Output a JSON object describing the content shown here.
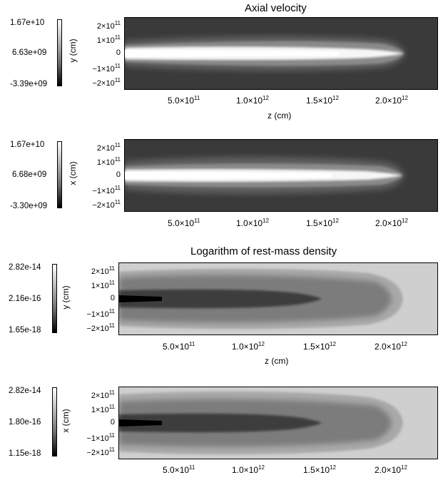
{
  "titles": {
    "velocity": "Axial velocity",
    "density": "Logarithm of rest-mass density"
  },
  "panels": [
    {
      "cbar_top": "1.67e+10",
      "cbar_mid": "6.63e+09",
      "cbar_bot": "-3.39e+09",
      "ylabel": "y (cm)",
      "xlabel": "z (cm)"
    },
    {
      "cbar_top": "1.67e+10",
      "cbar_mid": "6.68e+09",
      "cbar_bot": "-3.30e+09",
      "ylabel": "x (cm)",
      "xlabel": ""
    },
    {
      "cbar_top": "2.82e-14",
      "cbar_mid": "2.16e-16",
      "cbar_bot": "1.65e-18",
      "ylabel": "y (cm)",
      "xlabel": "z (cm)"
    },
    {
      "cbar_top": "2.82e-14",
      "cbar_mid": "1.80e-16",
      "cbar_bot": "1.15e-18",
      "ylabel": "x (cm)",
      "xlabel": ""
    }
  ],
  "yticks": [
    {
      "mant": "2×10",
      "exp": "11"
    },
    {
      "mant": "1×10",
      "exp": "11"
    },
    {
      "mant": "0",
      "exp": ""
    },
    {
      "mant": "−1×10",
      "exp": "11"
    },
    {
      "mant": "−2×10",
      "exp": "11"
    }
  ],
  "xticks": [
    {
      "mant": "5.0×10",
      "exp": "11"
    },
    {
      "mant": "1.0×10",
      "exp": "12"
    },
    {
      "mant": "1.5×10",
      "exp": "12"
    },
    {
      "mant": "2.0×10",
      "exp": "12"
    }
  ]
}
